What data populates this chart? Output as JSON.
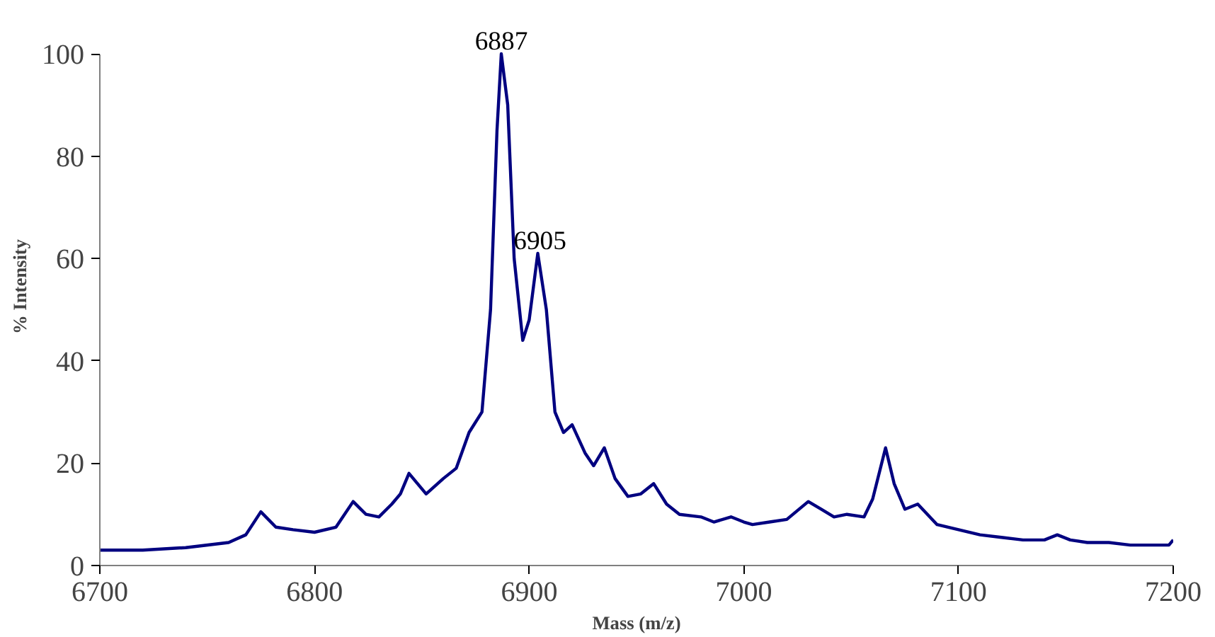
{
  "chart_data": {
    "type": "line",
    "xlabel": "Mass (m/z)",
    "ylabel": "% Intensity",
    "xlim": [
      6700,
      7200
    ],
    "xticks": [
      6700,
      6800,
      6900,
      7000,
      7100,
      7200
    ],
    "ylim": [
      0,
      100
    ],
    "yticks": [
      0,
      20,
      40,
      60,
      80,
      100
    ],
    "grid": false,
    "annotations": [
      {
        "text": "6887",
        "x": 6887,
        "y": 100
      },
      {
        "text": "6905",
        "x": 6905,
        "y": 61
      }
    ],
    "series": [
      {
        "color": "#000080",
        "x": [
          6700,
          6720,
          6740,
          6760,
          6768,
          6775,
          6782,
          6790,
          6800,
          6810,
          6818,
          6824,
          6830,
          6836,
          6840,
          6844,
          6852,
          6860,
          6866,
          6872,
          6878,
          6882,
          6885,
          6887,
          6890,
          6893,
          6897,
          6900,
          6904,
          6908,
          6912,
          6916,
          6920,
          6926,
          6930,
          6935,
          6940,
          6946,
          6952,
          6958,
          6964,
          6970,
          6980,
          6986,
          6994,
          7000,
          7004,
          7012,
          7020,
          7030,
          7036,
          7042,
          7048,
          7056,
          7060,
          7066,
          7070,
          7075,
          7081,
          7090,
          7100,
          7110,
          7120,
          7130,
          7140,
          7146,
          7152,
          7160,
          7170,
          7180,
          7190,
          7198,
          7200
        ],
        "values": [
          3,
          3,
          3.5,
          4.5,
          6,
          10.5,
          7.5,
          7,
          6.5,
          7.5,
          12.5,
          10,
          9.5,
          12,
          14,
          18,
          14,
          17,
          19,
          26,
          30,
          50,
          85,
          100,
          90,
          60,
          44,
          48,
          61,
          50,
          30,
          26,
          27.5,
          22,
          19.5,
          23,
          17,
          13.5,
          14,
          16,
          12,
          10,
          9.5,
          8.5,
          9.5,
          8.5,
          8,
          8.5,
          9,
          12.5,
          11,
          9.5,
          10,
          9.5,
          13,
          23,
          16,
          11,
          12,
          8,
          7,
          6,
          5.5,
          5,
          5,
          6,
          5,
          4.5,
          4.5,
          4,
          4,
          4,
          5
        ]
      }
    ]
  }
}
